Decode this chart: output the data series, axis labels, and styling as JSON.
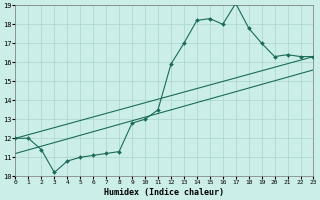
{
  "xlabel": "Humidex (Indice chaleur)",
  "bg_color": "#cceee8",
  "grid_color": "#aad4cc",
  "line_color": "#1a6b5a",
  "xlim": [
    0,
    23
  ],
  "ylim": [
    10,
    19
  ],
  "xticks": [
    0,
    1,
    2,
    3,
    4,
    5,
    6,
    7,
    8,
    9,
    10,
    11,
    12,
    13,
    14,
    15,
    16,
    17,
    18,
    19,
    20,
    21,
    22,
    23
  ],
  "yticks": [
    10,
    11,
    12,
    13,
    14,
    15,
    16,
    17,
    18,
    19
  ],
  "line1_x": [
    0,
    1,
    2,
    3,
    4,
    5,
    6,
    7,
    8,
    9,
    10,
    11,
    12,
    13,
    14,
    15,
    16,
    17,
    18,
    19,
    20,
    21,
    22,
    23
  ],
  "line1_y": [
    12.0,
    12.0,
    11.4,
    10.2,
    10.8,
    11.0,
    11.1,
    11.2,
    11.3,
    12.8,
    13.0,
    13.5,
    15.9,
    17.0,
    18.2,
    18.3,
    18.0,
    19.1,
    17.8,
    17.0,
    16.3,
    16.4,
    16.3,
    16.3
  ],
  "line2_x": [
    0,
    23
  ],
  "line2_y": [
    12.0,
    16.3
  ],
  "line3_x": [
    0,
    23
  ],
  "line3_y": [
    11.2,
    15.6
  ]
}
